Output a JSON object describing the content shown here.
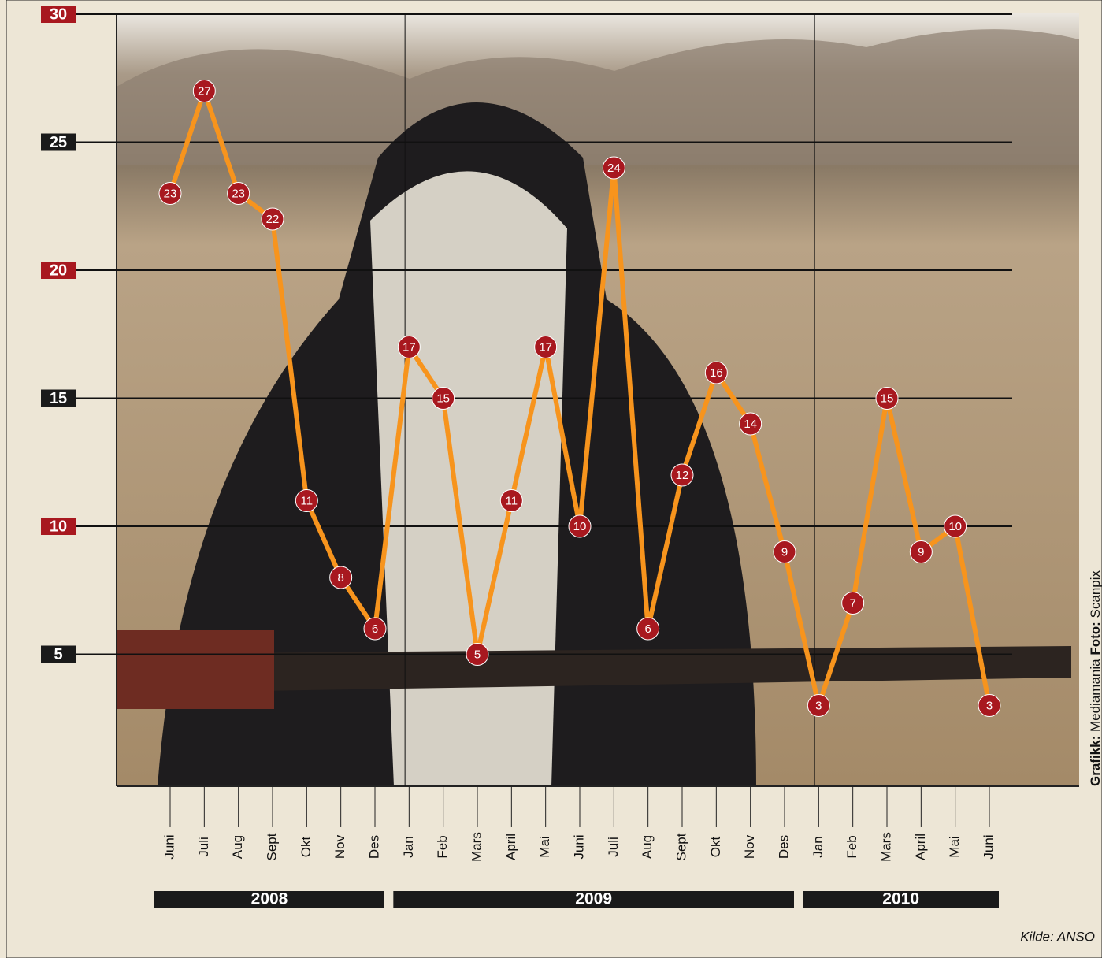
{
  "chart_data": {
    "type": "line",
    "categories": [
      "Juni",
      "Juli",
      "Aug",
      "Sept",
      "Okt",
      "Nov",
      "Des",
      "Jan",
      "Feb",
      "Mars",
      "April",
      "Mai",
      "Juni",
      "Juli",
      "Aug",
      "Sept",
      "Okt",
      "Nov",
      "Des",
      "Jan",
      "Feb",
      "Mars",
      "April",
      "Mai",
      "Juni"
    ],
    "x_groups": [
      {
        "label": "2008",
        "size": 7
      },
      {
        "label": "2009",
        "size": 12
      },
      {
        "label": "2010",
        "size": 6
      }
    ],
    "values": [
      23,
      27,
      23,
      22,
      11,
      8,
      6,
      17,
      15,
      5,
      11,
      17,
      10,
      24,
      6,
      12,
      16,
      14,
      9,
      3,
      7,
      15,
      9,
      10,
      3
    ],
    "color": "#f7941d",
    "marker_color": "#a8181f",
    "ylim": [
      0,
      30
    ],
    "yticks": [
      5,
      10,
      15,
      20,
      25,
      30
    ],
    "ytick_colors": [
      "#1a1a1a",
      "#a8181f",
      "#1a1a1a",
      "#a8181f",
      "#1a1a1a",
      "#a8181f"
    ],
    "grid": true,
    "credit": {
      "graphics_label": "Grafikk:",
      "graphics": "Mediamania",
      "photo_label": "Foto:",
      "photo": "Scanpix"
    },
    "source": "Kilde: ANSO"
  }
}
